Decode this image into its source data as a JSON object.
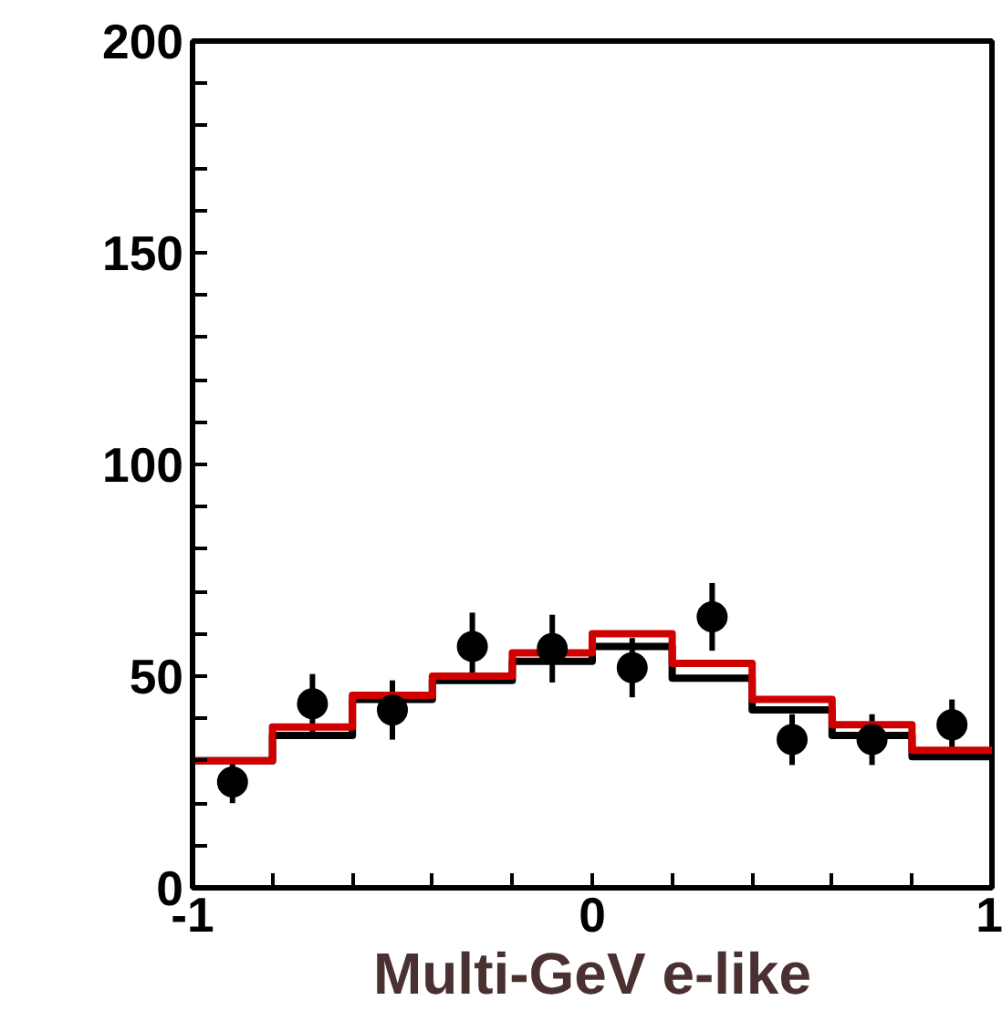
{
  "chart_data": {
    "type": "histogram",
    "xlabel": "Multi-GeV e-like",
    "bins": [
      -1,
      -0.8,
      -0.6,
      -0.4,
      -0.2,
      0,
      0.2,
      0.4,
      0.6,
      0.8,
      1
    ],
    "series": [
      {
        "color": "#000000",
        "values": [
          30,
          36,
          44.5,
          49,
          53.5,
          57,
          49.5,
          42,
          36,
          31
        ]
      },
      {
        "color": "#d00000",
        "values": [
          30,
          38,
          45.5,
          50,
          55.5,
          60,
          53,
          44.5,
          38.5,
          32.5
        ]
      },
      {
        "type": "scatter",
        "color": "#000000",
        "x": [
          -0.9,
          -0.7,
          -0.5,
          -0.3,
          -0.1,
          0.1,
          0.3,
          0.5,
          0.7,
          0.9
        ],
        "values": [
          25,
          43.5,
          42,
          57,
          56.5,
          52,
          64,
          35,
          35,
          38.5
        ],
        "errors": [
          5,
          7,
          7,
          8,
          8,
          7,
          8,
          6,
          6,
          6
        ]
      }
    ],
    "marker": "circle",
    "grid": false,
    "xlim": [
      -1,
      1
    ],
    "ylim": [
      0,
      200
    ],
    "xticks": [
      -1,
      {
        "value": -0.8,
        "label": null
      },
      {
        "value": -0.6,
        "label": null
      },
      {
        "value": -0.4,
        "label": null
      },
      {
        "value": -0.2,
        "label": null
      },
      0,
      {
        "value": 0.2,
        "label": null
      },
      {
        "value": 0.4,
        "label": null
      },
      {
        "value": 0.6,
        "label": null
      },
      {
        "value": 0.8,
        "label": null
      },
      1
    ],
    "yticks": [
      0,
      {
        "value": 10,
        "label": null
      },
      {
        "value": 20,
        "label": null
      },
      {
        "value": 30,
        "label": null
      },
      {
        "value": 40,
        "label": null
      },
      50,
      {
        "value": 60,
        "label": null
      },
      {
        "value": 70,
        "label": null
      },
      {
        "value": 80,
        "label": null
      },
      {
        "value": 90,
        "label": null
      },
      100,
      {
        "value": 110,
        "label": null
      },
      {
        "value": 120,
        "label": null
      },
      {
        "value": 130,
        "label": null
      },
      {
        "value": 140,
        "label": null
      },
      150,
      {
        "value": 160,
        "label": null
      },
      {
        "value": 170,
        "label": null
      },
      {
        "value": 180,
        "label": null
      },
      {
        "value": 190,
        "label": null
      },
      200
    ]
  }
}
